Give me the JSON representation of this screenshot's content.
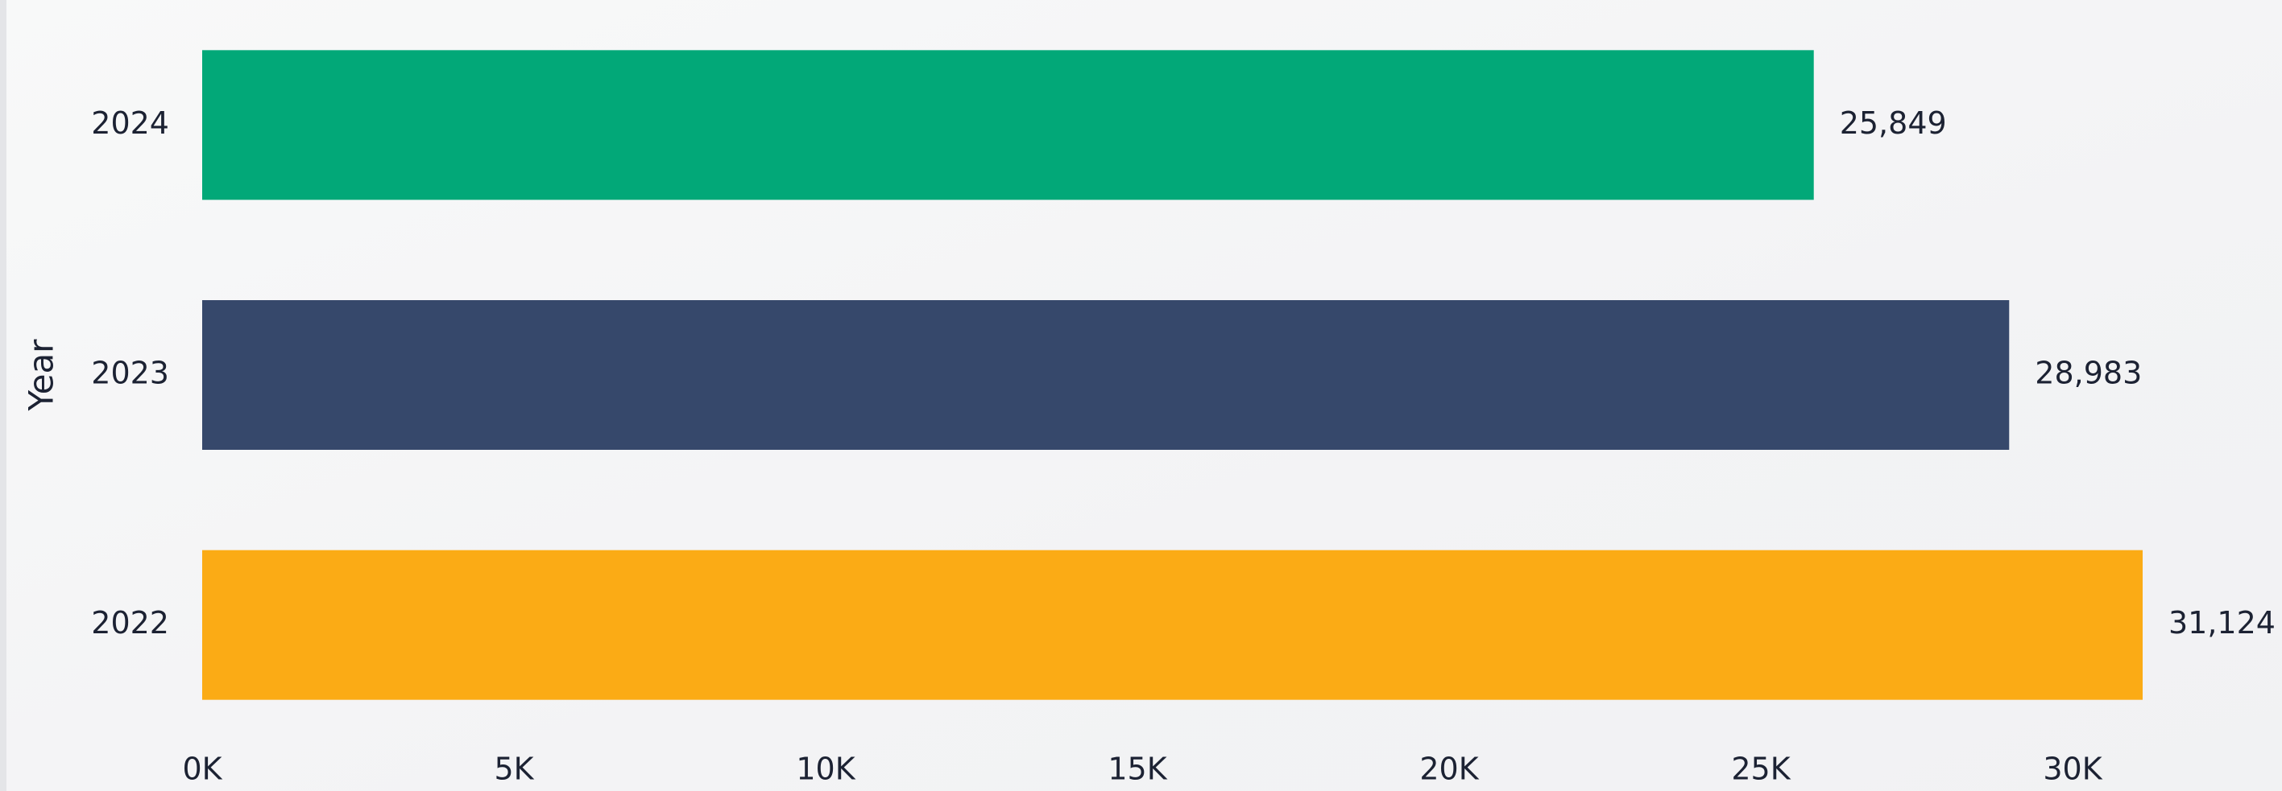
{
  "chart_data": {
    "type": "bar",
    "orientation": "horizontal",
    "y_label": "Year",
    "categories": [
      "2024",
      "2023",
      "2022"
    ],
    "values": [
      25849,
      28983,
      31124
    ],
    "value_labels": [
      "25,849",
      "28,983",
      "31,124"
    ],
    "colors": [
      "#02a878",
      "#36486b",
      "#fbab15"
    ],
    "xlim": [
      0,
      31124
    ],
    "xticks": [
      {
        "value": 0,
        "label": "0K"
      },
      {
        "value": 5000,
        "label": "5K"
      },
      {
        "value": 10000,
        "label": "10K"
      },
      {
        "value": 15000,
        "label": "15K"
      },
      {
        "value": 20000,
        "label": "20K"
      },
      {
        "value": 25000,
        "label": "25K"
      },
      {
        "value": 30000,
        "label": "30K"
      }
    ],
    "grid": false
  }
}
